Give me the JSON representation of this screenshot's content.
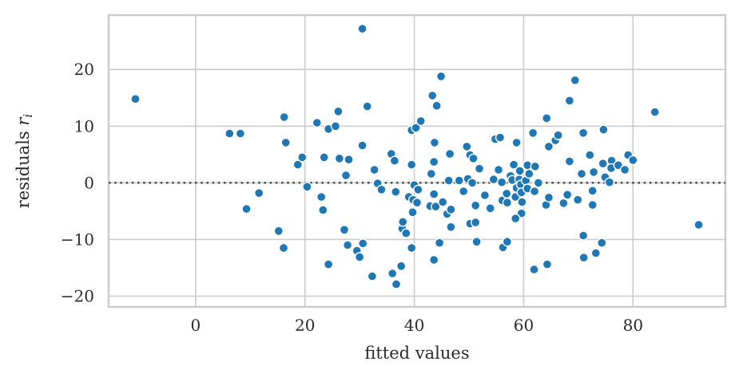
{
  "chart_data": {
    "type": "scatter",
    "title": "",
    "xlabel": "fitted values",
    "ylabel": "residuals r_i",
    "ylabel_parts": {
      "prefix": "residuals ",
      "var": "r",
      "sub": "i"
    },
    "xlim": [
      -15.9,
      96.9
    ],
    "ylim": [
      -21.9,
      29.6
    ],
    "xticks": [
      0,
      20,
      40,
      60,
      80
    ],
    "yticks": [
      -20,
      -10,
      0,
      10,
      20
    ],
    "grid": true,
    "legend": false,
    "zero_line": {
      "y": 0,
      "style": "dotted",
      "color": "#555555"
    },
    "style": {
      "marker_color": "#1f77b4",
      "marker_edge": "#ffffff",
      "marker_radius": 5.5,
      "grid_color": "#cbcbcb",
      "spine_color": "#cbcbcb",
      "background": "#ffffff"
    },
    "points": [
      [
        -11.0,
        14.8
      ],
      [
        6.2,
        8.7
      ],
      [
        8.2,
        8.7
      ],
      [
        9.3,
        -4.6
      ],
      [
        11.6,
        -1.8
      ],
      [
        15.2,
        -8.5
      ],
      [
        16.1,
        -11.5
      ],
      [
        16.2,
        11.6
      ],
      [
        16.5,
        7.1
      ],
      [
        18.7,
        3.2
      ],
      [
        19.5,
        4.5
      ],
      [
        20.4,
        -0.7
      ],
      [
        22.2,
        10.6
      ],
      [
        23.0,
        -2.5
      ],
      [
        23.3,
        -4.8
      ],
      [
        23.5,
        4.5
      ],
      [
        24.3,
        9.5
      ],
      [
        24.3,
        -14.4
      ],
      [
        25.6,
        10.0
      ],
      [
        26.1,
        12.6
      ],
      [
        26.3,
        4.3
      ],
      [
        27.2,
        -8.3
      ],
      [
        27.5,
        1.3
      ],
      [
        27.8,
        -11.0
      ],
      [
        28.0,
        4.1
      ],
      [
        29.5,
        -12.0
      ],
      [
        30.0,
        -13.1
      ],
      [
        30.5,
        27.2
      ],
      [
        30.5,
        6.6
      ],
      [
        30.6,
        -10.7
      ],
      [
        31.4,
        13.5
      ],
      [
        32.3,
        -16.5
      ],
      [
        32.7,
        2.3
      ],
      [
        33.3,
        -0.1
      ],
      [
        34.0,
        -1.2
      ],
      [
        35.8,
        5.1
      ],
      [
        36.4,
        3.9
      ],
      [
        36.0,
        -16.0
      ],
      [
        36.7,
        -17.9
      ],
      [
        36.6,
        -1.6
      ],
      [
        37.6,
        -14.7
      ],
      [
        37.8,
        -8.1
      ],
      [
        38.5,
        -8.9
      ],
      [
        37.9,
        -6.9
      ],
      [
        39.0,
        -2.5
      ],
      [
        39.5,
        3.2
      ],
      [
        39.5,
        9.3
      ],
      [
        39.7,
        -5.2
      ],
      [
        39.8,
        -3.0
      ],
      [
        40.0,
        -0.4
      ],
      [
        40.3,
        9.7
      ],
      [
        40.5,
        -3.5
      ],
      [
        40.7,
        -1.2
      ],
      [
        39.5,
        -11.5
      ],
      [
        41.2,
        10.9
      ],
      [
        42.9,
        -4.1
      ],
      [
        43.1,
        1.6
      ],
      [
        43.3,
        15.4
      ],
      [
        43.6,
        3.7
      ],
      [
        43.6,
        -2.0
      ],
      [
        43.6,
        -13.6
      ],
      [
        43.7,
        7.1
      ],
      [
        43.9,
        -4.2
      ],
      [
        44.1,
        13.6
      ],
      [
        44.6,
        -10.6
      ],
      [
        44.9,
        18.8
      ],
      [
        45.2,
        -3.4
      ],
      [
        46.0,
        -5.5
      ],
      [
        46.7,
        -4.7
      ],
      [
        46.3,
        0.4
      ],
      [
        46.5,
        5.1
      ],
      [
        46.7,
        -7.8
      ],
      [
        48.2,
        0.4
      ],
      [
        49.0,
        -1.5
      ],
      [
        49.6,
        6.4
      ],
      [
        49.8,
        0.7
      ],
      [
        50.2,
        4.9
      ],
      [
        50.8,
        4.3
      ],
      [
        50.6,
        0.0
      ],
      [
        50.2,
        -7.2
      ],
      [
        51.2,
        -7.0
      ],
      [
        51.2,
        -4.0
      ],
      [
        51.4,
        -10.4
      ],
      [
        51.9,
        2.5
      ],
      [
        52.9,
        -2.2
      ],
      [
        53.9,
        -4.5
      ],
      [
        54.5,
        0.6
      ],
      [
        55.4,
        2.3
      ],
      [
        54.8,
        7.7
      ],
      [
        55.7,
        8.0
      ],
      [
        56.0,
        0.1
      ],
      [
        56.1,
        -3.1
      ],
      [
        56.9,
        -1.9
      ],
      [
        57.0,
        -3.5
      ],
      [
        56.2,
        -11.4
      ],
      [
        57.0,
        -10.4
      ],
      [
        57.6,
        1.2
      ],
      [
        57.9,
        0.5
      ],
      [
        58.2,
        3.2
      ],
      [
        58.7,
        7.1
      ],
      [
        58.5,
        -2.5
      ],
      [
        58.7,
        -0.9
      ],
      [
        59.2,
        0.6
      ],
      [
        59.3,
        2.1
      ],
      [
        59.5,
        -0.3
      ],
      [
        59.6,
        -1.7
      ],
      [
        59.6,
        -5.4
      ],
      [
        58.5,
        -6.3
      ],
      [
        59.7,
        -3.4
      ],
      [
        60.4,
        0.4
      ],
      [
        60.7,
        -1.0
      ],
      [
        60.7,
        3.1
      ],
      [
        61.0,
        1.6
      ],
      [
        61.7,
        8.8
      ],
      [
        62.1,
        2.9
      ],
      [
        62.0,
        -1.5
      ],
      [
        62.7,
        0.0
      ],
      [
        61.9,
        -15.3
      ],
      [
        64.1,
        -3.9
      ],
      [
        64.3,
        -14.4
      ],
      [
        64.6,
        6.4
      ],
      [
        64.6,
        -2.6
      ],
      [
        64.2,
        11.4
      ],
      [
        65.8,
        7.5
      ],
      [
        66.3,
        8.4
      ],
      [
        67.3,
        -3.6
      ],
      [
        68.0,
        -2.1
      ],
      [
        68.4,
        3.8
      ],
      [
        68.4,
        14.5
      ],
      [
        69.4,
        18.1
      ],
      [
        69.9,
        -3.0
      ],
      [
        70.6,
        1.6
      ],
      [
        70.9,
        8.8
      ],
      [
        70.9,
        -9.3
      ],
      [
        71.0,
        -13.2
      ],
      [
        72.1,
        4.9
      ],
      [
        72.6,
        -1.4
      ],
      [
        72.8,
        1.9
      ],
      [
        72.6,
        -3.9
      ],
      [
        73.2,
        -12.4
      ],
      [
        74.3,
        -10.6
      ],
      [
        74.5,
        3.4
      ],
      [
        74.6,
        9.4
      ],
      [
        74.9,
        1.0
      ],
      [
        75.7,
        0.1
      ],
      [
        76.1,
        3.9
      ],
      [
        76.0,
        2.6
      ],
      [
        77.3,
        3.1
      ],
      [
        78.5,
        2.3
      ],
      [
        79.1,
        4.9
      ],
      [
        80.0,
        4.0
      ],
      [
        84.0,
        12.5
      ],
      [
        92.0,
        -7.4
      ]
    ]
  }
}
